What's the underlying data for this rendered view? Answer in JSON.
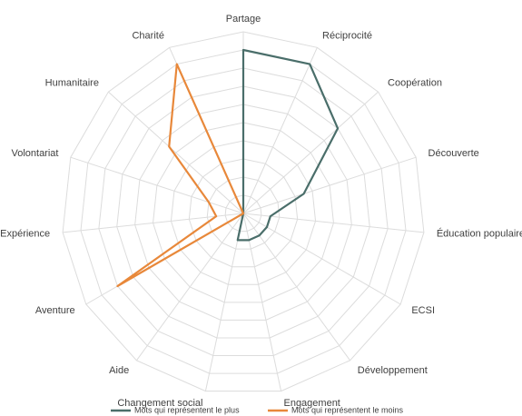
{
  "chart_data": {
    "type": "radar",
    "categories": [
      "Partage",
      "Réciprocité",
      "Coopération",
      "Découverte",
      "Éducation populaire",
      "ECSI",
      "Développement",
      "Engagement",
      "Changement social",
      "Aide",
      "Aventure",
      "Expérience",
      "Volontariat",
      "Humanitaire",
      "Charité"
    ],
    "series": [
      {
        "name": "Mots qui représentent le plus",
        "color": "#4a6e6a",
        "values": [
          9,
          9,
          7,
          3.5,
          1.5,
          1.5,
          1.5,
          1.5,
          1.5,
          0,
          0,
          0,
          0,
          0,
          0
        ]
      },
      {
        "name": "Mots qui représentent le moins",
        "color": "#e8883a",
        "values": [
          0,
          0,
          0,
          0,
          0,
          0,
          0,
          0,
          0,
          0,
          8,
          1.5,
          2,
          5.5,
          9
        ]
      }
    ],
    "rlim": [
      0,
      10
    ],
    "rticks": [
      1,
      2,
      3,
      4,
      5,
      6,
      7,
      8,
      9,
      10
    ],
    "grid": true
  }
}
